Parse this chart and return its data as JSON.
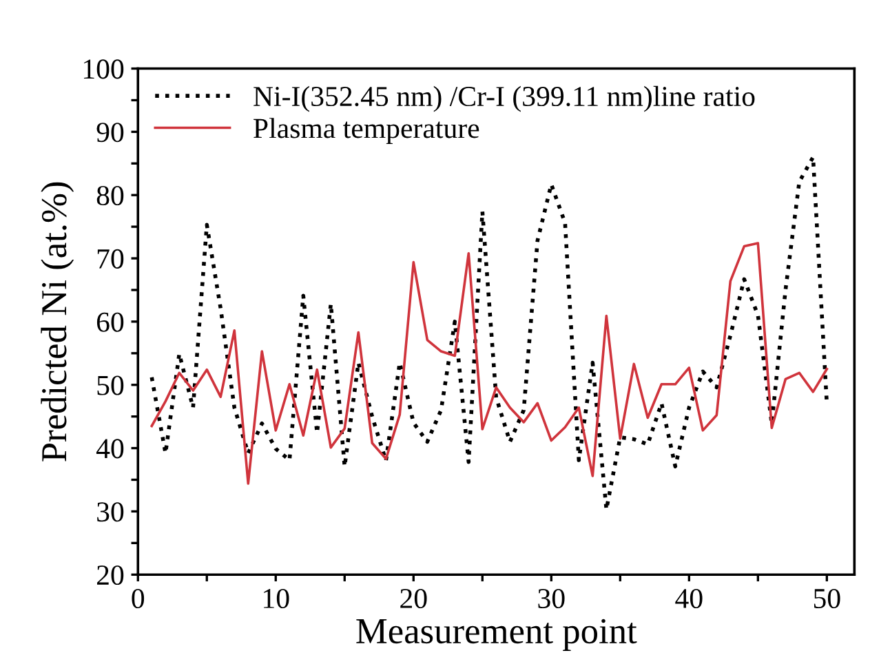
{
  "chart_data": {
    "type": "line",
    "xlabel": "Measurement point",
    "ylabel": "Predicted Ni (at.%)",
    "x": [
      1,
      2,
      3,
      4,
      5,
      6,
      7,
      8,
      9,
      10,
      11,
      12,
      13,
      14,
      15,
      16,
      17,
      18,
      19,
      20,
      21,
      22,
      23,
      24,
      25,
      26,
      27,
      28,
      29,
      30,
      31,
      32,
      33,
      34,
      35,
      36,
      37,
      38,
      39,
      40,
      41,
      42,
      43,
      44,
      45,
      46,
      47,
      48,
      49,
      50
    ],
    "series": [
      {
        "name": "Ni-I(352.45 nm) /Cr-I (399.11 nm)line ratio",
        "color": "#000000",
        "line_style": "dotted",
        "values": [
          51.2,
          39.2,
          54.9,
          46.4,
          75.3,
          62.1,
          46.4,
          39.2,
          43.9,
          39.9,
          38.1,
          64.1,
          42.4,
          62.8,
          37.1,
          53.5,
          45,
          38,
          53.5,
          44,
          41,
          46,
          60,
          37.8,
          77.4,
          48,
          41,
          46,
          72.8,
          81.7,
          75.6,
          38.1,
          53.5,
          30.3,
          41.7,
          41.4,
          40.6,
          47.1,
          37.1,
          46.4,
          52.1,
          49.6,
          57.8,
          66.7,
          61,
          43.9,
          65,
          82.1,
          86,
          47
        ]
      },
      {
        "name": "Plasma temperature",
        "color": "#d0343c",
        "line_style": "solid",
        "values": [
          43.5,
          47.4,
          51.9,
          49.1,
          52.4,
          48.1,
          58.6,
          34.4,
          55.3,
          42.8,
          50.1,
          42,
          52.4,
          40.1,
          43.1,
          58.3,
          40.8,
          38.3,
          45.3,
          69.4,
          57.1,
          55.3,
          54.6,
          70.8,
          43,
          49.6,
          46.4,
          44.1,
          47.1,
          41.2,
          43.3,
          46.4,
          35.6,
          60.9,
          41.5,
          53.3,
          44.8,
          50.1,
          50.1,
          52.7,
          42.8,
          45.2,
          66.4,
          71.9,
          72.4,
          43.2,
          50.9,
          51.9,
          48.9,
          52.5
        ]
      }
    ],
    "xlim": [
      0,
      52
    ],
    "xticks": [
      0,
      {
        "value": 5,
        "label": null
      },
      10,
      {
        "value": 15,
        "label": null
      },
      20,
      {
        "value": 25,
        "label": null
      },
      30,
      {
        "value": 35,
        "label": null
      },
      40,
      {
        "value": 45,
        "label": null
      },
      50
    ],
    "ylim": [
      20,
      100
    ],
    "yticks": [
      20,
      {
        "value": 25,
        "label": null
      },
      30,
      {
        "value": 35,
        "label": null
      },
      40,
      {
        "value": 45,
        "label": null
      },
      50,
      {
        "value": 55,
        "label": null
      },
      60,
      {
        "value": 65,
        "label": null
      },
      70,
      {
        "value": 75,
        "label": null
      },
      80,
      {
        "value": 85,
        "label": null
      },
      90,
      {
        "value": 95,
        "label": null
      },
      100
    ],
    "grid": false,
    "legend": "top left",
    "marker": "none"
  }
}
